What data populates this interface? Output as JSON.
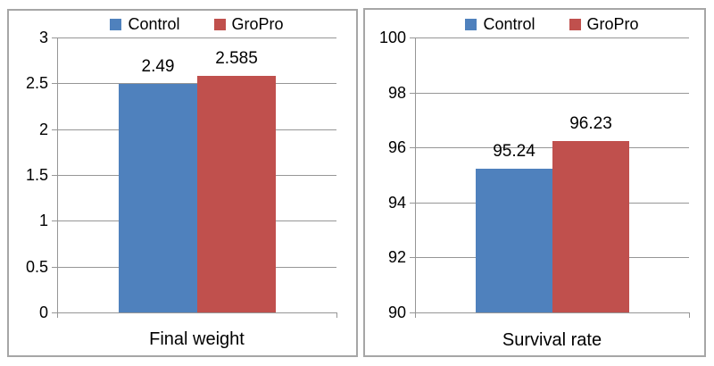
{
  "figure": {
    "background": "#ffffff",
    "panel_border_color": "#a6a6a6",
    "gridline_color": "#969696",
    "text_color": "#000000"
  },
  "chart_data": [
    {
      "type": "bar",
      "title": "Final weight",
      "categories": [
        "Final weight"
      ],
      "series": [
        {
          "name": "Control",
          "color": "#4F81BD",
          "values": [
            2.49
          ],
          "value_labels": [
            "2.49"
          ]
        },
        {
          "name": "GroPro",
          "color": "#C0504D",
          "values": [
            2.585
          ],
          "value_labels": [
            "2.585"
          ]
        }
      ],
      "ylim": [
        0,
        3
      ],
      "yticks": [
        0,
        0.5,
        1,
        1.5,
        2,
        2.5,
        3
      ],
      "grid": true,
      "legend_position": "top"
    },
    {
      "type": "bar",
      "title": "Survival rate",
      "categories": [
        "Survival rate"
      ],
      "series": [
        {
          "name": "Control",
          "color": "#4F81BD",
          "values": [
            95.24
          ],
          "value_labels": [
            "95.24"
          ]
        },
        {
          "name": "GroPro",
          "color": "#C0504D",
          "values": [
            96.23
          ],
          "value_labels": [
            "96.23"
          ]
        }
      ],
      "ylim": [
        90,
        100
      ],
      "yticks": [
        90,
        92,
        94,
        96,
        98,
        100
      ],
      "grid": true,
      "legend_position": "top"
    }
  ]
}
